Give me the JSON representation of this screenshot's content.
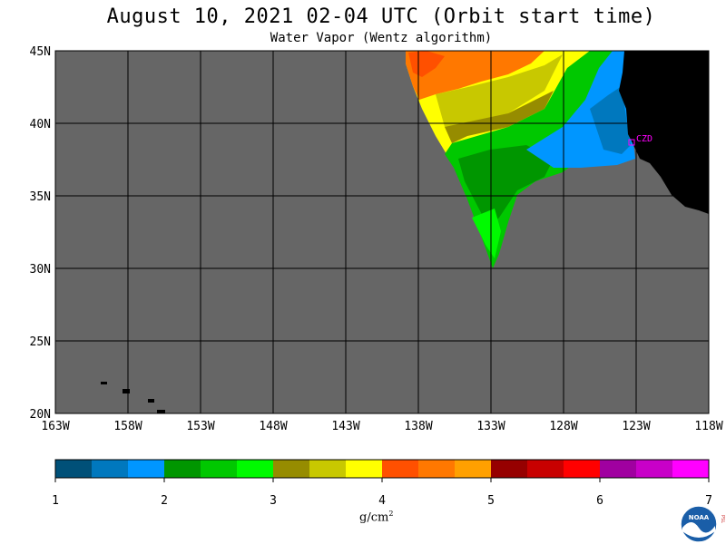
{
  "header": {
    "title": "August 10, 2021  02-04 UTC  (Orbit start time)",
    "subtitle": "Water Vapor (Wentz algorithm)"
  },
  "map": {
    "lat_labels": [
      "45N",
      "40N",
      "35N",
      "30N",
      "25N",
      "20N"
    ],
    "lon_labels": [
      "163W",
      "158W",
      "153W",
      "148W",
      "143W",
      "138W",
      "133W",
      "128W",
      "123W",
      "118W"
    ],
    "station_label": "CZD",
    "colors": {
      "no_data": "#666666",
      "land": "#000000",
      "grid": "#000000",
      "station": "#ff00ff"
    }
  },
  "colorbar": {
    "colors": [
      "#005078",
      "#0078be",
      "#0096ff",
      "#009600",
      "#00c800",
      "#00fa00",
      "#968c00",
      "#c8c800",
      "#ffff00",
      "#ff5000",
      "#ff7800",
      "#ffa000",
      "#960000",
      "#c80000",
      "#ff0000",
      "#a000a0",
      "#c800c8",
      "#ff00ff"
    ],
    "tick_labels": [
      "1",
      "2",
      "3",
      "4",
      "5",
      "6",
      "7"
    ],
    "unit_label": "g/cm",
    "unit_superscript": "2"
  },
  "logo": {
    "text": "NOAA",
    "side_text": "PSL"
  }
}
